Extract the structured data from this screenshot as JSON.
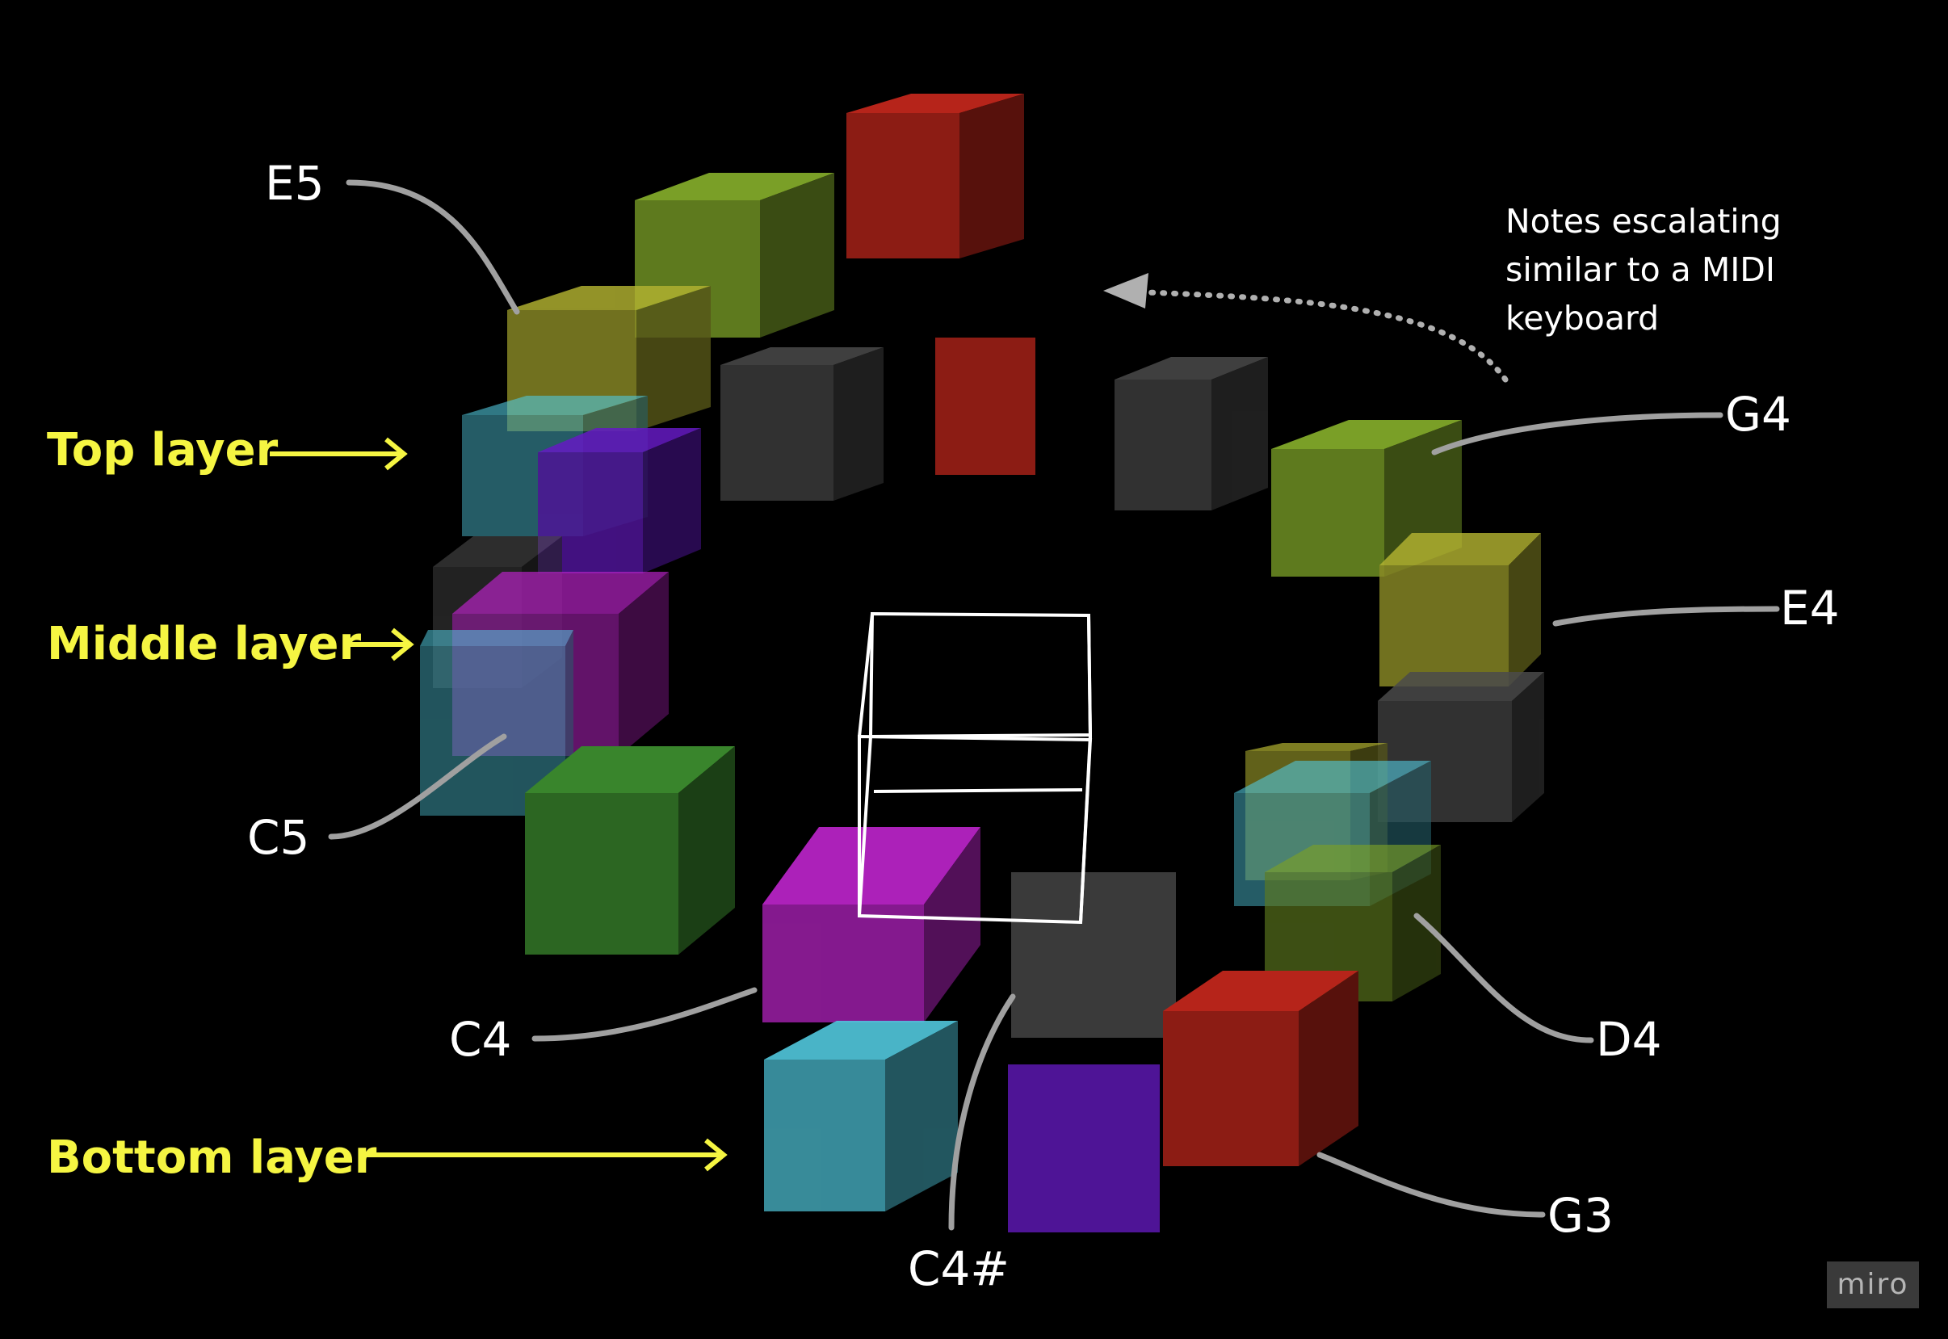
{
  "note_labels": {
    "e5": "E5",
    "g4": "G4",
    "e4": "E4",
    "c5": "C5",
    "c4": "C4",
    "d4": "D4",
    "g3": "G3",
    "c4_sharp": "C4#"
  },
  "layer_labels": {
    "top": "Top layer",
    "middle": "Middle layer",
    "bottom": "Bottom layer"
  },
  "annotation": {
    "lines": [
      "Notes escalating",
      "similar to a MIDI",
      "keyboard"
    ]
  },
  "watermark": "miro",
  "colors": {
    "background": "#000000",
    "label_text": "#ffffff",
    "layer_label_text": "#f5f542",
    "connector": "#a0a0a0",
    "red": "#8c1c14",
    "olive": "#5e7a1e",
    "yellow": "#8a8a26",
    "cyan": "#3e9aaa",
    "purple": "#4e1496",
    "magenta": "#8c1b96",
    "green": "#2c6622",
    "dark_gray": "#3a3a3a",
    "outline": "#ffffff"
  }
}
